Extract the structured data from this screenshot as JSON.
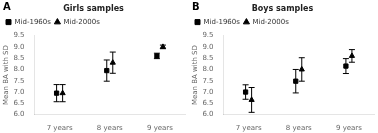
{
  "chart_data": [
    {
      "type": "errorbar",
      "annotation": "A",
      "title": "Girls samples",
      "categories": [
        "7 years",
        "8 years",
        "9 years"
      ],
      "series": [
        {
          "name": "Mid-1960s",
          "marker": "square",
          "color": "black",
          "values": [
            6.95,
            7.95,
            8.6
          ],
          "errors": [
            0.38,
            0.47,
            0.12
          ]
        },
        {
          "name": "Mid-2000s",
          "marker": "triangle",
          "color": "black",
          "values": [
            6.95,
            8.3,
            9.0
          ],
          "errors": [
            0.38,
            0.47,
            0.08
          ]
        }
      ],
      "ylabel": "Mean BA with SD",
      "ylim": [
        6.0,
        9.5
      ],
      "yticks": [
        {
          "value": 6.0,
          "label": "6.0"
        },
        6.5,
        {
          "value": 7.0,
          "label": "7.0"
        },
        7.5,
        {
          "value": 8.0,
          "label": "8.0"
        },
        8.5,
        {
          "value": 9.0,
          "label": "9.0"
        },
        9.5
      ],
      "grid": false,
      "legend": "upper left"
    },
    {
      "type": "errorbar",
      "annotation": "B",
      "title": "Boys samples",
      "categories": [
        "7 years",
        "8 years",
        "9 years"
      ],
      "series": [
        {
          "name": "Mid-1960s",
          "marker": "square",
          "color": "black",
          "values": [
            7.0,
            7.48,
            8.15
          ],
          "errors": [
            0.32,
            0.52,
            0.33
          ]
        },
        {
          "name": "Mid-2000s",
          "marker": "triangle",
          "color": "black",
          "values": [
            6.65,
            8.0,
            8.6
          ],
          "errors": [
            0.55,
            0.52,
            0.28
          ]
        }
      ],
      "ylabel": "Mean BA with SD",
      "ylim": [
        6.0,
        9.5
      ],
      "yticks": [
        {
          "value": 6.0,
          "label": "6.0"
        },
        6.5,
        {
          "value": 7.0,
          "label": "7.0"
        },
        7.5,
        {
          "value": 8.0,
          "label": "8.0"
        },
        8.5,
        {
          "value": 9.0,
          "label": "9.0"
        },
        9.5
      ],
      "grid": false,
      "legend": "upper left"
    }
  ]
}
